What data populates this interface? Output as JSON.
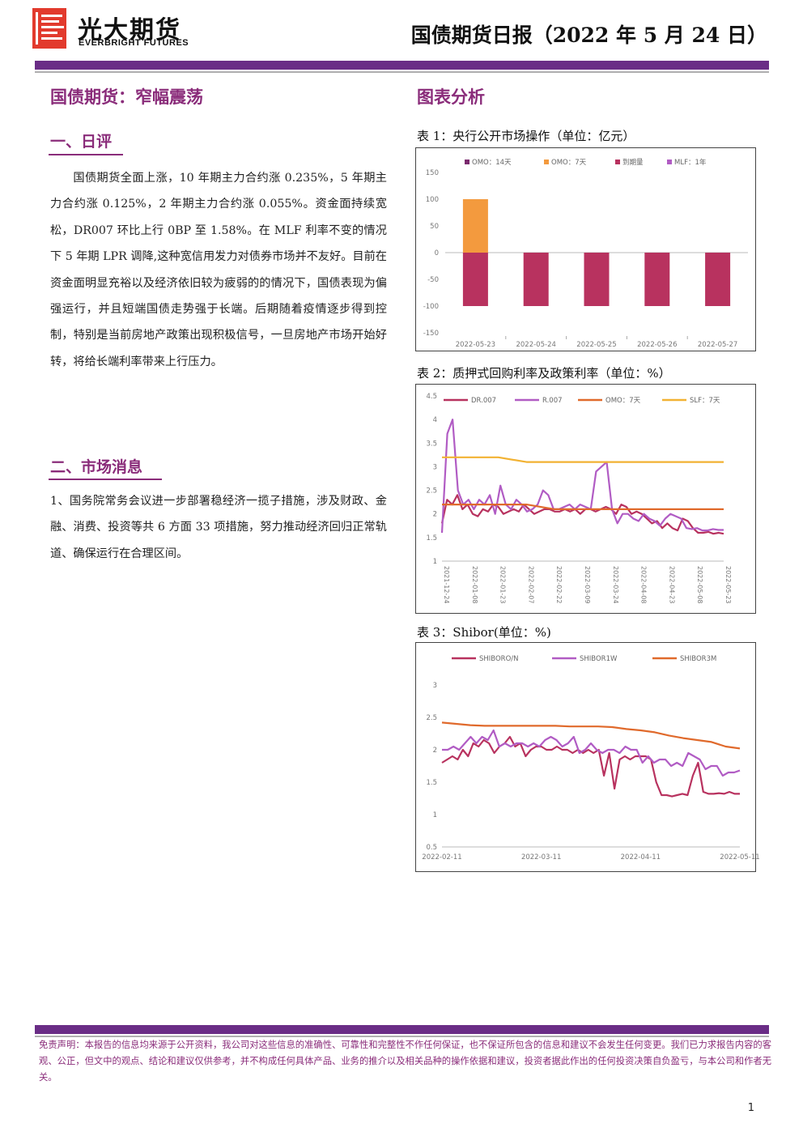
{
  "header": {
    "logo_cn": "光大期货",
    "logo_en": "EVERBRIGHT FUTURES",
    "report_title": "国债期货日报（2022 年 5 月 24 日）"
  },
  "left": {
    "main_title": "国债期货：窄幅震荡",
    "section1_title": "一、日评",
    "section1_text": "国债期货全面上涨，10 年期主力合约涨 0.235%，5 年期主力合约涨 0.125%，2 年期主力合约涨 0.055%。资金面持续宽松，DR007 环比上行 0BP 至 1.58%。在 MLF 利率不变的情况下 5 年期 LPR 调降,这种宽信用发力对债券市场并不友好。目前在资金面明显充裕以及经济依旧较为疲弱的的情况下，国债表现为偏强运行，并且短端国债走势强于长端。后期随着疫情逐步得到控制，特别是当前房地产政策出现积极信号，一旦房地产市场开始好转，将给长端利率带来上行压力。",
    "section2_title": "二、市场消息",
    "section2_text": "1、国务院常务会议进一步部署稳经济一揽子措施，涉及财政、金融、消费、投资等共 6 方面 33 项措施，努力推动经济回归正常轨道、确保运行在合理区间。"
  },
  "right": {
    "title": "图表分析",
    "chart1_caption": "表 1：央行公开市场操作（单位：亿元）",
    "chart2_caption": "表 2：质押式回购利率及政策利率（单位：%）",
    "chart3_caption": "表 3：Shibor(单位：%)"
  },
  "chart_data": [
    {
      "type": "bar",
      "categories": [
        "2022-05-23",
        "2022-05-24",
        "2022-05-25",
        "2022-05-26",
        "2022-05-27"
      ],
      "series": [
        {
          "name": "OMO：14天",
          "color": "#7b2a6e",
          "values": [
            0,
            0,
            0,
            0,
            0
          ]
        },
        {
          "name": "OMO：7天",
          "color": "#f39a3e",
          "values": [
            100,
            0,
            0,
            0,
            0
          ]
        },
        {
          "name": "到期量",
          "color": "#b8325f",
          "values": [
            -100,
            -100,
            -100,
            -100,
            -100
          ]
        },
        {
          "name": "MLF：1年",
          "color": "#b15cc4",
          "values": [
            0,
            0,
            0,
            0,
            0
          ]
        }
      ],
      "ylim": [
        -150,
        150
      ],
      "yticks": [
        "150",
        "100",
        "50",
        "0",
        "-50",
        "-100",
        "-150"
      ]
    },
    {
      "type": "line",
      "x_ticks": [
        "2021-12-24",
        "2022-01-08",
        "2022-01-23",
        "2022-02-07",
        "2022-02-22",
        "2022-03-09",
        "2022-03-24",
        "2022-04-08",
        "2022-04-23",
        "2022-05-08",
        "2022-05-23"
      ],
      "ylim": [
        1,
        4.5
      ],
      "yticks": [
        "4.5",
        "4",
        "3.5",
        "3",
        "2.5",
        "2",
        "1.5",
        "1"
      ],
      "series": [
        {
          "name": "DR.007",
          "color": "#b8325f",
          "values": [
            1.8,
            2.3,
            2.2,
            2.4,
            2.1,
            2.2,
            2.0,
            1.95,
            2.1,
            2.05,
            2.2,
            2.15,
            2.0,
            2.05,
            2.1,
            2.05,
            2.2,
            2.1,
            2.0,
            2.05,
            2.1,
            2.1,
            2.05,
            2.05,
            2.1,
            2.05,
            2.1,
            2.0,
            2.1,
            2.1,
            2.05,
            2.1,
            2.15,
            2.1,
            2.0,
            2.2,
            2.15,
            2.0,
            2.05,
            2.0,
            1.9,
            1.8,
            1.85,
            1.7,
            1.8,
            1.7,
            1.65,
            1.9,
            1.85,
            1.7,
            1.6,
            1.6,
            1.62,
            1.58,
            1.6,
            1.58
          ]
        },
        {
          "name": "R.007",
          "color": "#b15cc4",
          "values": [
            1.6,
            3.7,
            4.0,
            2.5,
            2.2,
            2.3,
            2.1,
            2.3,
            2.2,
            2.4,
            2.0,
            2.6,
            2.2,
            2.1,
            2.3,
            2.2,
            2.05,
            2.1,
            2.2,
            2.5,
            2.4,
            2.1,
            2.1,
            2.15,
            2.2,
            2.1,
            2.2,
            2.15,
            2.1,
            2.9,
            3.0,
            3.1,
            2.1,
            1.8,
            2.0,
            2.0,
            1.9,
            1.85,
            2.0,
            1.9,
            1.85,
            1.75,
            1.9,
            2.0,
            1.95,
            1.9,
            1.7,
            1.68,
            1.7,
            1.65,
            1.65,
            1.68,
            1.66,
            1.66
          ]
        },
        {
          "name": "OMO：7天",
          "color": "#e06a2c",
          "values": [
            2.2,
            2.2,
            2.2,
            2.2,
            2.1,
            2.1,
            2.1,
            2.1,
            2.1,
            2.1,
            2.1
          ]
        },
        {
          "name": "SLF：7天",
          "color": "#f2b233",
          "values": [
            3.2,
            3.2,
            3.2,
            3.1,
            3.1,
            3.1,
            3.1,
            3.1,
            3.1,
            3.1,
            3.1
          ]
        }
      ]
    },
    {
      "type": "line",
      "x_ticks": [
        "2022-02-11",
        "2022-03-11",
        "2022-04-11",
        "2022-05-11"
      ],
      "ylim": [
        0.5,
        3
      ],
      "yticks": [
        "3",
        "2.5",
        "2",
        "1.5",
        "1",
        "0.5"
      ],
      "series": [
        {
          "name": "SHIBORO/N",
          "color": "#b8325f",
          "values": [
            1.8,
            1.85,
            1.9,
            1.85,
            2.0,
            1.9,
            2.1,
            2.05,
            2.15,
            2.1,
            1.95,
            2.05,
            2.1,
            2.2,
            2.05,
            2.1,
            1.9,
            2.0,
            2.05,
            2.05,
            2.0,
            2.0,
            2.05,
            2.0,
            2.0,
            1.95,
            2.0,
            1.95,
            2.0,
            1.95,
            2.0,
            1.6,
            1.95,
            1.4,
            1.85,
            1.9,
            1.85,
            1.9,
            1.9,
            1.9,
            1.85,
            1.5,
            1.3,
            1.3,
            1.28,
            1.3,
            1.32,
            1.3,
            1.6,
            1.8,
            1.35,
            1.32,
            1.32,
            1.33,
            1.32,
            1.35,
            1.32,
            1.32
          ]
        },
        {
          "name": "SHIBOR1W",
          "color": "#b15cc4",
          "values": [
            2.0,
            2.0,
            2.05,
            2.0,
            2.1,
            2.2,
            2.1,
            2.2,
            2.15,
            2.3,
            2.05,
            2.1,
            2.05,
            2.1,
            2.1,
            2.05,
            2.1,
            2.05,
            2.15,
            2.2,
            2.15,
            2.05,
            2.1,
            2.2,
            1.95,
            2.0,
            2.1,
            2.0,
            1.95,
            2.0,
            2.0,
            1.95,
            2.05,
            2.0,
            2.0,
            1.8,
            1.9,
            1.8,
            1.85,
            1.85,
            1.75,
            1.8,
            1.75,
            1.95,
            1.9,
            1.85,
            1.7,
            1.75,
            1.75,
            1.6,
            1.65,
            1.65,
            1.68
          ]
        },
        {
          "name": "SHIBOR3M",
          "color": "#e06a2c",
          "values": [
            2.42,
            2.4,
            2.38,
            2.37,
            2.37,
            2.37,
            2.37,
            2.37,
            2.37,
            2.36,
            2.36,
            2.36,
            2.35,
            2.32,
            2.3,
            2.27,
            2.22,
            2.18,
            2.15,
            2.12,
            2.05,
            2.02
          ]
        }
      ]
    }
  ],
  "footer": {
    "disclaimer": "免责声明：本报告的信息均来源于公开资料，我公司对这些信息的准确性、可靠性和完整性不作任何保证，也不保证所包含的信息和建议不会发生任何变更。我们已力求报告内容的客观、公正，但文中的观点、结论和建议仅供参考，并不构成任何具体产品、业务的推介以及相关品种的操作依据和建议，投资者据此作出的任何投资决策自负盈亏，与本公司和作者无关。",
    "page_number": "1"
  }
}
